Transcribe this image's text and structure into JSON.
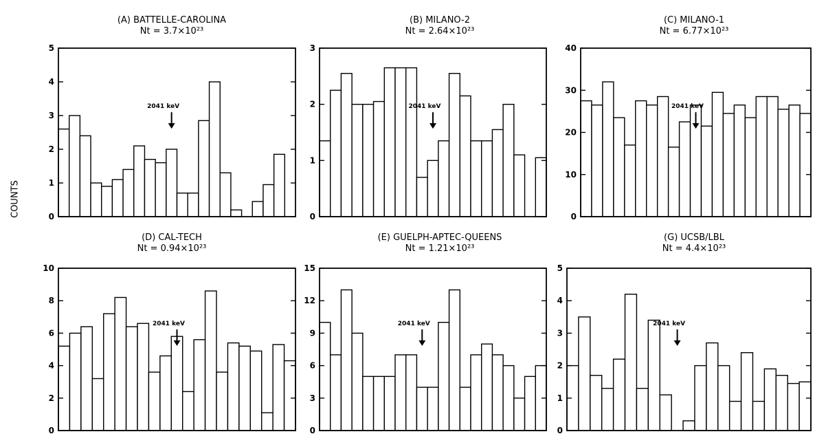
{
  "ylabel": "COUNTS",
  "chart_data": [
    {
      "type": "bar",
      "panel": "(A)",
      "title": "(A) BATTELLE-CAROLINA",
      "subtitle": "Nt = 3.7×10²³",
      "ylim": [
        0,
        5
      ],
      "yticks": [
        0,
        1,
        2,
        3,
        4,
        5
      ],
      "values": [
        2.6,
        3.0,
        2.4,
        1.0,
        0.9,
        1.1,
        1.4,
        2.1,
        1.7,
        1.6,
        2.0,
        0.7,
        0.7,
        2.85,
        4.0,
        1.3,
        0.2,
        0,
        0.45,
        0.95,
        1.85,
        0
      ],
      "annotation": "2041 keV",
      "arrow_bin": 11
    },
    {
      "type": "bar",
      "panel": "(B)",
      "title": "(B) MILANO-2",
      "subtitle": "Nt = 2.64×10²³",
      "ylim": [
        0,
        3
      ],
      "yticks": [
        0,
        1,
        2,
        3
      ],
      "values": [
        1.35,
        2.25,
        2.55,
        2.0,
        2.0,
        2.05,
        2.65,
        2.65,
        2.65,
        0.7,
        1.0,
        1.35,
        2.55,
        2.15,
        1.35,
        1.35,
        1.55,
        2.0,
        1.1,
        0,
        1.05
      ],
      "annotation": "2041 keV",
      "arrow_bin": 11
    },
    {
      "type": "bar",
      "panel": "(C)",
      "title": "(C) MILANO-1",
      "subtitle": "Nt = 6.77×10²³",
      "ylim": [
        0,
        40
      ],
      "yticks": [
        0,
        10,
        20,
        30,
        40
      ],
      "values": [
        27.5,
        26.5,
        32.0,
        23.5,
        17.0,
        27.5,
        26.5,
        28.5,
        16.5,
        22.5,
        26.5,
        21.5,
        29.5,
        24.5,
        26.5,
        23.5,
        28.5,
        28.5,
        25.5,
        26.5,
        24.5
      ],
      "annotation": "2041 keV",
      "arrow_bin": 11
    },
    {
      "type": "bar",
      "panel": "(D)",
      "title": "(D) CAL-TECH",
      "subtitle": "Nt = 0.94×10²³",
      "ylim": [
        0,
        10
      ],
      "yticks": [
        0,
        2,
        4,
        6,
        8,
        10
      ],
      "values": [
        5.2,
        6.0,
        6.4,
        3.2,
        7.2,
        8.2,
        6.4,
        6.6,
        3.6,
        4.6,
        5.8,
        2.4,
        5.6,
        8.6,
        3.6,
        5.4,
        5.2,
        4.9,
        1.1,
        5.3,
        4.3
      ],
      "annotation": "2041 keV",
      "arrow_bin": 11
    },
    {
      "type": "bar",
      "panel": "(E)",
      "title": "(E) GUELPH-APTEC-QUEENS",
      "subtitle": "Nt = 1.21×10²³",
      "ylim": [
        0,
        15
      ],
      "yticks": [
        0,
        3,
        6,
        9,
        12,
        15
      ],
      "values": [
        10,
        7,
        13,
        9,
        5,
        5,
        5,
        7,
        7,
        4,
        4,
        10,
        13,
        4,
        7,
        8,
        7,
        6,
        3,
        5,
        6
      ],
      "annotation": "2041 keV",
      "arrow_bin": 10
    },
    {
      "type": "bar",
      "panel": "(G)",
      "title": "(G) UCSB/LBL",
      "subtitle": "Nt = 4.4×10²³",
      "ylim": [
        0,
        5
      ],
      "yticks": [
        0,
        1,
        2,
        3,
        4,
        5
      ],
      "values": [
        2.0,
        3.5,
        1.7,
        1.3,
        2.2,
        4.2,
        1.3,
        3.4,
        1.1,
        0,
        0.3,
        2.0,
        2.7,
        2.0,
        0.9,
        2.4,
        0.9,
        1.9,
        1.7,
        1.45,
        1.5
      ],
      "annotation": "2041 keV",
      "arrow_bin": 10
    }
  ]
}
